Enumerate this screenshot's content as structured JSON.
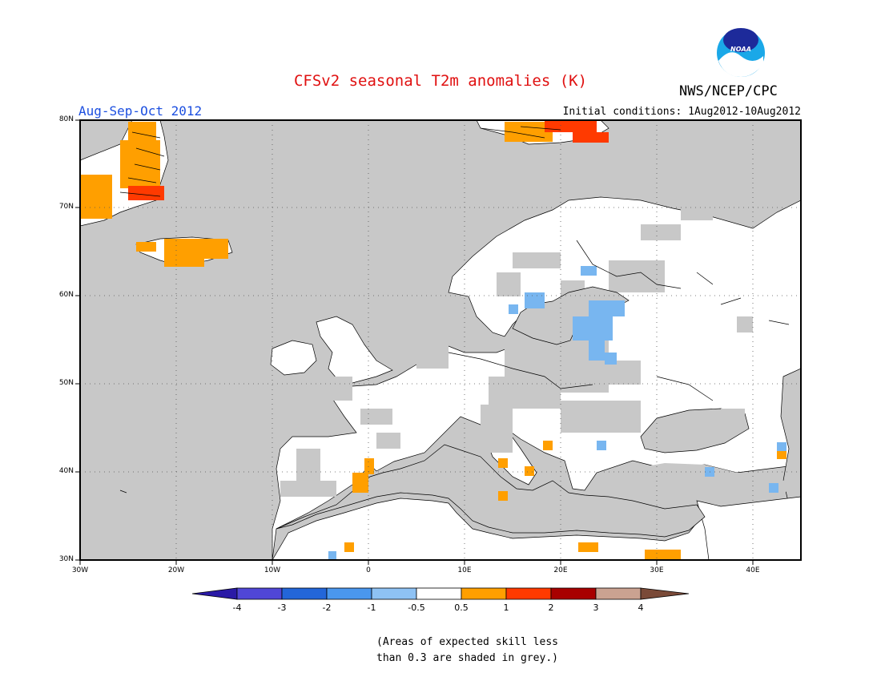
{
  "header": {
    "title": "CFSv2 seasonal T2m anomalies (K)",
    "agency": "NWS/NCEP/CPC",
    "logo_text": "NOAA",
    "season": "Aug-Sep-Oct 2012",
    "initial_conditions": "Initial conditions: 1Aug2012-10Aug2012"
  },
  "map": {
    "lon_range": [
      -30,
      45
    ],
    "lat_range": [
      30,
      80
    ],
    "lat_labels": [
      "30N",
      "40N",
      "50N",
      "60N",
      "70N",
      "80N"
    ],
    "lon_labels": [
      "30W",
      "20W",
      "10W",
      "0",
      "10E",
      "20E",
      "30E",
      "40E"
    ],
    "colors": {
      "ocean": "#c8c8c8",
      "land": "#ffffff",
      "frame": "#000000"
    }
  },
  "colorbar": {
    "labels": [
      "-4",
      "-3",
      "-2",
      "-1",
      "-0.5",
      "0.5",
      "1",
      "2",
      "3",
      "4"
    ],
    "colors": [
      "#2a1aa6",
      "#5046d6",
      "#2366d9",
      "#4a97ee",
      "#8ec2f4",
      "#ffffff",
      "#ff9f00",
      "#ff3a00",
      "#a80000",
      "#caa291",
      "#7a4a38"
    ]
  },
  "footnote": {
    "line1": "(Areas of expected skill less",
    "line2": "than 0.3 are shaded in grey.)"
  }
}
